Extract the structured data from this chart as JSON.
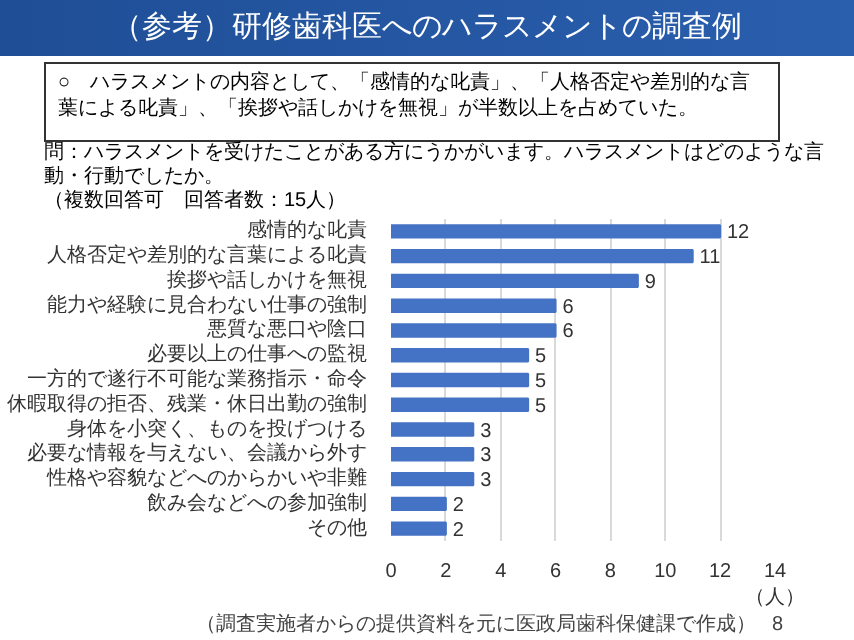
{
  "chart_data": {
    "type": "bar",
    "orientation": "horizontal",
    "title": "（参考）研修歯科医へのハラスメントの調査例",
    "subtitle": "○　ハラスメントの内容として、「感情的な叱責」、「人格否定や差別的な言葉による叱責」、「挨拶や話しかけを無視」が半数以上を占めていた。",
    "annotations": [
      "問：ハラスメントを受けたことがある方にうかがいます。ハラスメントはどのような言動・行動でしたか。",
      "（複数回答可　回答者数：15人）",
      "（調査実施者からの提供資料を元に医政局歯科保健課で作成）",
      "8"
    ],
    "xlabel": "（人）",
    "categories": [
      "感情的な叱責",
      "人格否定や差別的な言葉による叱責",
      "挨拶や話しかけを無視",
      "能力や経験に見合わない仕事の強制",
      "悪質な悪口や陰口",
      "必要以上の仕事への監視",
      "一方的で遂行不可能な業務指示・命令",
      "休暇取得の拒否、残業・休日出勤の強制",
      "身体を小突く、ものを投げつける",
      "必要な情報を与えない、会議から外す",
      "性格や容貌などへのからかいや非難",
      "飲み会などへの参加強制",
      "その他"
    ],
    "values": [
      12,
      11,
      9,
      6,
      6,
      5,
      5,
      5,
      3,
      3,
      3,
      2,
      2
    ],
    "color": "#4472c4",
    "data_labels": true,
    "xlim": [
      0,
      14
    ],
    "xticks": [
      0,
      2,
      4,
      6,
      8,
      10,
      12,
      14
    ],
    "grid": "x"
  }
}
